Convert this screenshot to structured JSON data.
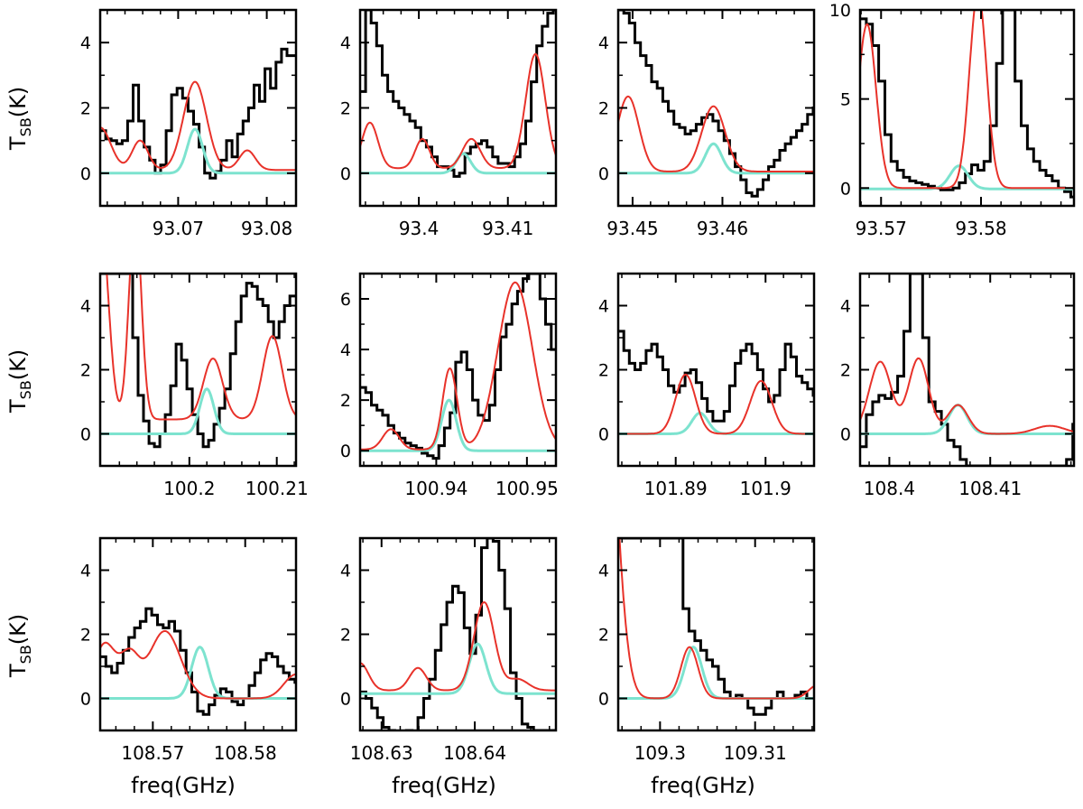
{
  "figure": {
    "ylabel_main": "T",
    "ylabel_sub": "SB",
    "ylabel_unit": "(K)",
    "xlabel": "freq(GHz)"
  },
  "colors": {
    "observed": "#000000",
    "model_total": "#e8322a",
    "model_line": "#7de3cf"
  },
  "chart_data": [
    {
      "type": "line",
      "xlim": [
        93.0612,
        93.0833
      ],
      "ylim": [
        -1,
        5
      ],
      "xticks": [
        93.07,
        93.08
      ],
      "xtick_labels": [
        "93.07",
        "93.08"
      ],
      "yticks": [
        0,
        2,
        4
      ],
      "ytick_labels": [
        "0",
        "2",
        "4"
      ],
      "observed": {
        "x0": 93.0612,
        "dx": 0.00062,
        "y": [
          1.3,
          1.05,
          1.0,
          0.9,
          1.0,
          1.6,
          2.7,
          1.6,
          0.8,
          0.4,
          0.0,
          0.25,
          1.3,
          2.4,
          2.6,
          2.3,
          1.9,
          1.5,
          0.8,
          0.0,
          -0.15,
          0.05,
          0.4,
          1.0,
          0.5,
          1.2,
          1.6,
          2.0,
          2.7,
          2.2,
          3.2,
          2.6,
          3.4,
          3.8,
          3.6,
          3.6
        ]
      },
      "model_total": {
        "baseline": 0.1,
        "lines": [
          [
            93.0612,
            1.3,
            0.0012
          ],
          [
            93.0657,
            0.9,
            0.0009
          ],
          [
            93.0719,
            2.7,
            0.0013
          ],
          [
            93.0778,
            0.6,
            0.0009
          ]
        ]
      },
      "model_line": {
        "baseline": 0.0,
        "lines": [
          [
            93.0719,
            1.35,
            0.00085
          ]
        ]
      }
    },
    {
      "type": "line",
      "xlim": [
        93.3934,
        93.4154
      ],
      "ylim": [
        -1,
        5
      ],
      "xticks": [
        93.4,
        93.41
      ],
      "xtick_labels": [
        "93.4",
        "93.41"
      ],
      "yticks": [
        0,
        2,
        4
      ],
      "ytick_labels": [
        "0",
        "2",
        "4"
      ],
      "observed": {
        "x0": 93.3934,
        "dx": 0.00062,
        "y": [
          2.5,
          5.0,
          4.6,
          3.9,
          3.0,
          2.5,
          2.2,
          2.0,
          1.8,
          1.6,
          1.4,
          1.0,
          0.8,
          0.5,
          0.2,
          0.2,
          0.1,
          -0.1,
          0.0,
          0.6,
          0.8,
          0.9,
          1.0,
          0.8,
          0.5,
          0.3,
          0.3,
          0.2,
          0.5,
          0.9,
          1.6,
          2.8,
          3.9,
          4.5,
          4.9,
          5.0
        ]
      },
      "model_total": {
        "baseline": 0.15,
        "lines": [
          [
            93.3945,
            1.4,
            0.0009
          ],
          [
            93.4004,
            0.9,
            0.0008
          ],
          [
            93.4059,
            0.9,
            0.001
          ],
          [
            93.4131,
            3.5,
            0.0011
          ]
        ]
      },
      "model_line": {
        "baseline": 0.0,
        "lines": [
          [
            93.405,
            0.6,
            0.0008
          ]
        ]
      }
    },
    {
      "type": "line",
      "xlim": [
        93.4484,
        93.4702
      ],
      "ylim": [
        -1,
        5
      ],
      "xticks": [
        93.45,
        93.46
      ],
      "xtick_labels": [
        "93.45",
        "93.46"
      ],
      "yticks": [
        0,
        2,
        4
      ],
      "ytick_labels": [
        "0",
        "2",
        "4"
      ],
      "observed": {
        "x0": 93.4484,
        "dx": 0.00062,
        "y": [
          5.0,
          4.9,
          4.6,
          4.0,
          3.6,
          3.3,
          2.8,
          2.6,
          2.2,
          1.9,
          1.5,
          1.4,
          1.2,
          1.3,
          1.5,
          1.7,
          1.8,
          1.6,
          1.3,
          1.0,
          0.6,
          0.2,
          -0.2,
          -0.6,
          -0.7,
          -0.5,
          -0.2,
          0.2,
          0.4,
          0.7,
          0.9,
          1.1,
          1.3,
          1.5,
          1.8,
          2.0
        ]
      },
      "model_total": {
        "baseline": 0.05,
        "lines": [
          [
            93.4495,
            2.3,
            0.0012
          ],
          [
            93.459,
            2.0,
            0.0013
          ]
        ]
      },
      "model_line": {
        "baseline": 0.0,
        "lines": [
          [
            93.459,
            0.9,
            0.0009
          ]
        ]
      }
    },
    {
      "type": "line",
      "xlim": [
        93.5679,
        93.5893
      ],
      "ylim": [
        -1,
        10
      ],
      "xticks": [
        93.57,
        93.58
      ],
      "xtick_labels": [
        "93.57",
        "93.58"
      ],
      "yticks": [
        0,
        5,
        10
      ],
      "ytick_labels": [
        "0",
        "5",
        "10"
      ],
      "observed": {
        "x0": 93.5679,
        "dx": 0.00062,
        "y": [
          9.5,
          9.2,
          8.0,
          6.0,
          3.0,
          1.5,
          1.0,
          0.6,
          0.4,
          0.3,
          0.2,
          0.1,
          0.0,
          -0.1,
          -0.1,
          0.0,
          0.3,
          0.8,
          1.3,
          1.0,
          1.5,
          3.5,
          7.0,
          10.0,
          10.0,
          6.0,
          3.5,
          2.2,
          1.5,
          1.0,
          0.7,
          0.4,
          0.0,
          -0.2,
          -0.5,
          -0.3
        ]
      },
      "model_total": {
        "baseline": 0.0,
        "lines": [
          [
            93.5686,
            9.2,
            0.0009
          ],
          [
            93.5797,
            11.0,
            0.00085
          ]
        ]
      },
      "model_line": {
        "baseline": -0.05,
        "lines": [
          [
            93.5778,
            1.3,
            0.0009
          ]
        ]
      }
    },
    {
      "type": "line",
      "xlim": [
        100.1898,
        100.2122
      ],
      "ylim": [
        -1,
        5
      ],
      "xticks": [
        100.2,
        100.21
      ],
      "xtick_labels": [
        "100.2",
        "100.21"
      ],
      "yticks": [
        0,
        2,
        4
      ],
      "ytick_labels": [
        "0",
        "2",
        "4"
      ],
      "observed": {
        "x0": 100.1898,
        "dx": 0.00062,
        "y": [
          5.0,
          5.0,
          5.0,
          5.0,
          5.0,
          5.0,
          3.0,
          1.2,
          0.4,
          -0.3,
          -0.4,
          0.0,
          0.6,
          1.5,
          2.8,
          2.3,
          1.4,
          0.6,
          0.0,
          -0.4,
          -0.2,
          0.3,
          0.8,
          1.4,
          2.5,
          3.5,
          4.3,
          4.7,
          4.6,
          4.2,
          4.0,
          3.5,
          3.0,
          3.5,
          4.0,
          4.3
        ]
      },
      "model_total": {
        "baseline": 0.45,
        "lines": [
          [
            100.1898,
            6.5,
            0.0009
          ],
          [
            100.1938,
            6.5,
            0.0007
          ],
          [
            100.2027,
            1.9,
            0.0011
          ],
          [
            100.2095,
            2.6,
            0.0011
          ]
        ]
      },
      "model_line": {
        "baseline": 0.0,
        "lines": [
          [
            100.202,
            1.4,
            0.0008
          ]
        ]
      }
    },
    {
      "type": "line",
      "xlim": [
        100.9316,
        100.9532
      ],
      "ylim": [
        -0.6,
        7
      ],
      "xticks": [
        100.94,
        100.95
      ],
      "xtick_labels": [
        "100.94",
        "100.95"
      ],
      "yticks": [
        0,
        2,
        4,
        6
      ],
      "ytick_labels": [
        "0",
        "2",
        "4",
        "6"
      ],
      "observed": {
        "x0": 100.9316,
        "dx": 0.00062,
        "y": [
          2.5,
          2.3,
          1.8,
          1.6,
          1.4,
          1.0,
          0.7,
          0.5,
          0.3,
          0.2,
          0.1,
          -0.1,
          -0.2,
          -0.3,
          0.2,
          0.9,
          1.5,
          3.5,
          3.9,
          3.2,
          2.0,
          1.4,
          1.2,
          1.8,
          3.2,
          4.5,
          5.0,
          5.8,
          6.3,
          6.8,
          7.0,
          7.0,
          6.0,
          5.0,
          4.0,
          3.5
        ]
      },
      "model_total": {
        "baseline": 0.05,
        "lines": [
          [
            100.935,
            0.8,
            0.0009
          ],
          [
            100.9415,
            3.2,
            0.0008
          ],
          [
            100.9487,
            6.6,
            0.0019
          ]
        ]
      },
      "model_line": {
        "baseline": 0.0,
        "lines": [
          [
            100.9414,
            2.0,
            0.0008
          ]
        ]
      }
    },
    {
      "type": "line",
      "xlim": [
        101.8836,
        101.9054
      ],
      "ylim": [
        -1,
        5
      ],
      "xticks": [
        101.89,
        101.9
      ],
      "xtick_labels": [
        "101.89",
        "101.9"
      ],
      "yticks": [
        0,
        2,
        4
      ],
      "ytick_labels": [
        "0",
        "2",
        "4"
      ],
      "observed": {
        "x0": 101.8836,
        "dx": 0.00062,
        "y": [
          3.2,
          2.6,
          2.2,
          2.0,
          2.2,
          2.6,
          2.8,
          2.4,
          2.0,
          1.5,
          1.3,
          1.5,
          1.9,
          2.0,
          1.6,
          1.1,
          0.7,
          0.4,
          0.4,
          0.7,
          1.5,
          2.2,
          2.6,
          2.8,
          2.5,
          2.0,
          1.4,
          1.0,
          1.2,
          2.0,
          2.8,
          2.4,
          1.8,
          1.6,
          1.4,
          1.2
        ]
      },
      "model_total": {
        "baseline": 0.0,
        "lines": [
          [
            101.8911,
            1.85,
            0.0011
          ],
          [
            101.8995,
            1.65,
            0.0012
          ]
        ]
      },
      "model_line": {
        "baseline": 0.0,
        "lines": [
          [
            101.8927,
            0.65,
            0.0009
          ]
        ]
      }
    },
    {
      "type": "line",
      "xlim": [
        108.3971,
        108.4183
      ],
      "ylim": [
        -1,
        5
      ],
      "xticks": [
        108.4,
        108.41
      ],
      "xtick_labels": [
        "108.4",
        "108.41"
      ],
      "yticks": [
        0,
        2,
        4
      ],
      "ytick_labels": [
        "0",
        "2",
        "4"
      ],
      "observed": {
        "x0": 108.3971,
        "dx": 0.00062,
        "y": [
          -0.4,
          0.6,
          1.0,
          1.2,
          1.1,
          1.3,
          1.8,
          3.2,
          5.0,
          5.0,
          3.0,
          1.0,
          0.7,
          0.3,
          -0.2,
          -0.4,
          -0.8,
          -1.0,
          -1.0,
          -1.0,
          -1.0,
          -1.0,
          -1.0,
          -1.0,
          -1.0,
          -1.0,
          -1.0,
          -1.0,
          -1.0,
          -1.0,
          -1.0,
          -1.0,
          -1.0,
          -0.8,
          0.3,
          2.0
        ]
      },
      "model_total": {
        "baseline": 0.0,
        "lines": [
          [
            108.3991,
            2.25,
            0.0011
          ],
          [
            108.4029,
            2.35,
            0.001
          ],
          [
            108.4068,
            0.9,
            0.001
          ],
          [
            108.4159,
            0.25,
            0.0015
          ]
        ]
      },
      "model_line": {
        "baseline": 0.0,
        "lines": [
          [
            108.4068,
            0.9,
            0.0009
          ]
        ]
      }
    },
    {
      "type": "line",
      "xlim": [
        108.5643,
        108.5855
      ],
      "ylim": [
        -1,
        5
      ],
      "xticks": [
        108.57,
        108.58
      ],
      "xtick_labels": [
        "108.57",
        "108.58"
      ],
      "yticks": [
        0,
        2,
        4
      ],
      "ytick_labels": [
        "0",
        "2",
        "4"
      ],
      "observed": {
        "x0": 108.5643,
        "dx": 0.00062,
        "y": [
          1.3,
          1.0,
          0.8,
          1.1,
          1.5,
          1.9,
          2.2,
          2.4,
          2.8,
          2.6,
          2.3,
          2.2,
          2.4,
          2.1,
          1.5,
          0.8,
          0.2,
          -0.4,
          -0.5,
          -0.2,
          0.1,
          0.3,
          0.2,
          -0.1,
          -0.2,
          0.0,
          0.4,
          0.8,
          1.2,
          1.4,
          1.3,
          1.0,
          0.8,
          0.6,
          0.5,
          0.4
        ]
      },
      "model_total": {
        "baseline": 0.0,
        "lines": [
          [
            108.5648,
            1.7,
            0.0012
          ],
          [
            108.5675,
            1.25,
            0.001
          ],
          [
            108.5713,
            2.1,
            0.0017
          ],
          [
            108.5855,
            0.75,
            0.0013
          ]
        ]
      },
      "model_line": {
        "baseline": 0.0,
        "lines": [
          [
            108.5751,
            1.6,
            0.0009
          ]
        ]
      }
    },
    {
      "type": "line",
      "xlim": [
        108.6277,
        108.6487
      ],
      "ylim": [
        -1,
        5
      ],
      "xticks": [
        108.63,
        108.64
      ],
      "xtick_labels": [
        "108.63",
        "108.64"
      ],
      "yticks": [
        0,
        2,
        4
      ],
      "ytick_labels": [
        "0",
        "2",
        "4"
      ],
      "observed": {
        "x0": 108.6277,
        "dx": 0.00062,
        "y": [
          0.2,
          0.0,
          -0.3,
          -0.6,
          -0.9,
          -1.0,
          -1.1,
          -1.2,
          -1.0,
          -1.1,
          -0.6,
          0.0,
          0.6,
          1.5,
          2.3,
          3.0,
          3.5,
          3.3,
          2.2,
          1.4,
          2.6,
          4.7,
          5.0,
          4.9,
          4.0,
          2.8,
          0.8,
          0.0,
          -0.8,
          -0.9,
          -1.0,
          -1.0,
          -1.0,
          -1.0,
          -1.0,
          -1.0
        ]
      },
      "model_total": {
        "baseline": 0.25,
        "lines": [
          [
            108.6277,
            0.85,
            0.0009
          ],
          [
            108.6339,
            0.7,
            0.0009
          ],
          [
            108.641,
            2.75,
            0.0011
          ],
          [
            108.6446,
            0.35,
            0.0011
          ]
        ]
      },
      "model_line": {
        "baseline": 0.15,
        "lines": [
          [
            108.6403,
            1.55,
            0.0009
          ]
        ]
      }
    },
    {
      "type": "line",
      "xlim": [
        109.2956,
        109.3162
      ],
      "ylim": [
        -1,
        5
      ],
      "xticks": [
        109.3,
        109.31
      ],
      "xtick_labels": [
        "109.3",
        "109.31"
      ],
      "yticks": [
        0,
        2,
        4
      ],
      "ytick_labels": [
        "0",
        "2",
        "4"
      ],
      "observed": {
        "x0": 109.2956,
        "dx": 0.00062,
        "y": [
          5.0,
          5.0,
          5.0,
          5.0,
          5.0,
          5.0,
          5.0,
          5.0,
          5.0,
          5.0,
          5.0,
          2.8,
          2.1,
          1.8,
          1.5,
          1.2,
          1.0,
          0.6,
          0.2,
          0.0,
          0.1,
          0.0,
          -0.3,
          -0.5,
          -0.5,
          -0.3,
          0.0,
          0.2,
          0.0,
          0.0,
          0.1,
          0.2,
          0.0,
          0.0,
          0.0,
          0.0
        ]
      },
      "model_total": {
        "baseline": 0.0,
        "lines": [
          [
            109.2941,
            11.0,
            0.0013
          ],
          [
            109.3031,
            1.6,
            0.0009
          ],
          [
            109.3165,
            0.4,
            0.0009
          ]
        ]
      },
      "model_line": {
        "baseline": 0.0,
        "lines": [
          [
            109.3035,
            1.6,
            0.0009
          ]
        ]
      }
    }
  ]
}
